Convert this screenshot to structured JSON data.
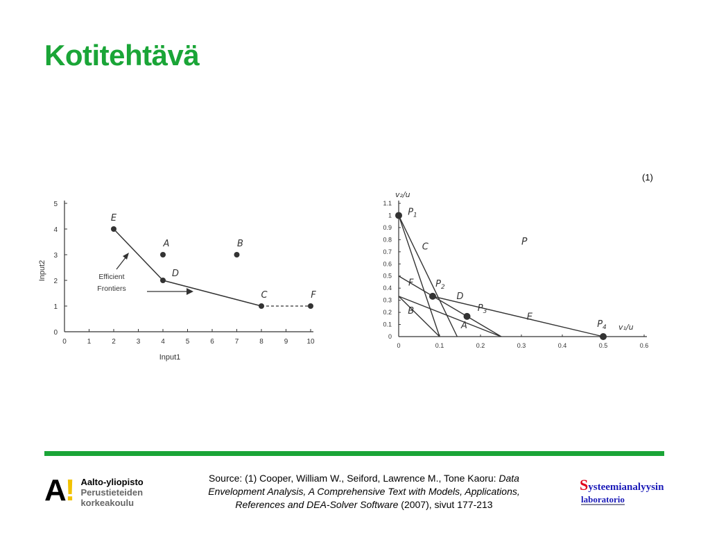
{
  "slide": {
    "title": "Kotitehtävä",
    "ref_marker": "(1)"
  },
  "chart_data": [
    {
      "type": "scatter",
      "title": "",
      "xlabel": "Input1",
      "ylabel": "Input2",
      "xlim": [
        0,
        10
      ],
      "ylim": [
        0,
        5
      ],
      "xticks": [
        0,
        1,
        2,
        3,
        4,
        5,
        6,
        7,
        8,
        9,
        10
      ],
      "yticks": [
        0,
        1,
        2,
        3,
        4,
        5
      ],
      "points": [
        {
          "label": "E",
          "x": 2,
          "y": 4
        },
        {
          "label": "A",
          "x": 4,
          "y": 3
        },
        {
          "label": "D",
          "x": 4,
          "y": 2
        },
        {
          "label": "B",
          "x": 7,
          "y": 3
        },
        {
          "label": "C",
          "x": 8,
          "y": 1
        },
        {
          "label": "F",
          "x": 10,
          "y": 1
        }
      ],
      "frontier": [
        "E",
        "D",
        "C"
      ],
      "dashed_extension": [
        "C",
        "F"
      ],
      "annotation": "Efficient\nFrontiers",
      "grid": false
    },
    {
      "type": "line",
      "title": "",
      "xlabel": "v₁/u",
      "ylabel": "v₂/u",
      "xlim": [
        0,
        0.6
      ],
      "ylim": [
        0,
        1.1
      ],
      "xticks": [
        0,
        0.1,
        0.2,
        0.3,
        0.4,
        0.5,
        0.6
      ],
      "yticks": [
        0,
        0.1,
        0.2,
        0.3,
        0.4,
        0.5,
        0.6,
        0.7,
        0.8,
        0.9,
        1,
        1.1
      ],
      "xtick_labels": [
        "0",
        "0.1",
        "0.2",
        "0.3",
        "0.4",
        "0.5",
        "0.6"
      ],
      "ytick_labels": [
        "0",
        "0.1",
        "0.2",
        "0.3",
        "0.4",
        "0.5",
        "0.6",
        "0.7",
        "0.8",
        "0.9",
        "1",
        "1.1"
      ],
      "constraint_lines": [
        {
          "label": "C",
          "x1": 0,
          "y1": 1,
          "x2": 0.1,
          "y2": 0
        },
        {
          "label": "F",
          "x1": 0,
          "y1": 1,
          "x2": 0.143,
          "y2": 0
        },
        {
          "label": "B",
          "x1": 0,
          "y1": 0.333,
          "x2": 0.1,
          "y2": 0
        },
        {
          "label": "A",
          "x1": 0,
          "y1": 0.333,
          "x2": 0.25,
          "y2": 0
        },
        {
          "label": "D",
          "x1": 0,
          "y1": 0.5,
          "x2": 0.167,
          "y2": 0.167
        },
        {
          "label": "E",
          "x1": 0.083,
          "y1": 0.333,
          "x2": 0.5,
          "y2": 0
        }
      ],
      "extreme_points": [
        {
          "label": "P1",
          "x": 0,
          "y": 1
        },
        {
          "label": "P2",
          "x": 0.083,
          "y": 0.333
        },
        {
          "label": "P3",
          "x": 0.167,
          "y": 0.167
        },
        {
          "label": "P4",
          "x": 0.5,
          "y": 0
        }
      ],
      "region_label": "P",
      "grid": false
    }
  ],
  "footer": {
    "logo_line1": "Aalto-yliopisto",
    "logo_line2": "Perustieteiden",
    "logo_line3": "korkeakoulu",
    "source_prefix": "Source: (1) Cooper, William W., Seiford, Lawrence M., Tone Kaoru: ",
    "source_title_a": "Data",
    "source_title_b": "Envelopment Analysis, A Comprehensive Text with Models, Applications,",
    "source_title_c": "References and DEA-Solver Software",
    "source_suffix": " (2007), sivut 177-213",
    "lab_s": "S",
    "lab_rest": "ysteemianalyysin",
    "lab_line2": "laboratorio"
  },
  "colors": {
    "title": "#1aa537",
    "rule": "#1aa537",
    "ink": "#333333"
  }
}
